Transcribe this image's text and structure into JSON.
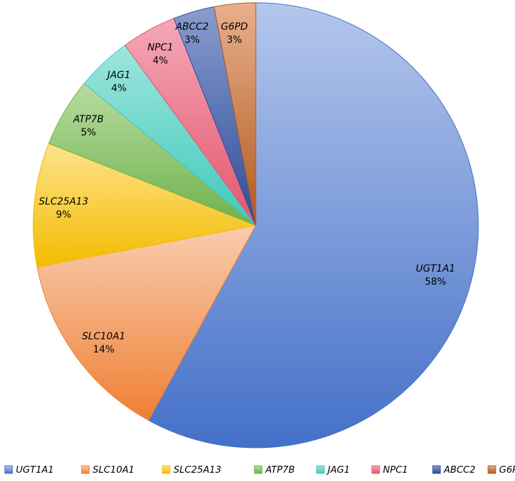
{
  "chart_data": {
    "type": "pie",
    "title": "",
    "categories": [
      "UGT1A1",
      "SLC10A1",
      "SLC25A13",
      "ATP7B",
      "JAG1",
      "NPC1",
      "ABCC2",
      "G6PD"
    ],
    "values": [
      58,
      14,
      9,
      5,
      4,
      4,
      3,
      3
    ],
    "labels": [
      "58%",
      "14%",
      "9%",
      "5%",
      "4%",
      "4%",
      "3%",
      "3%"
    ],
    "colors_light": [
      "#B4C7EC",
      "#F8CDAE",
      "#FDE38C",
      "#B7DB9F",
      "#9EE6DC",
      "#F4A8B6",
      "#8A9CCF",
      "#E8B08C"
    ],
    "colors_dark": [
      "#4470C8",
      "#EF7F34",
      "#F3BC00",
      "#6FB24C",
      "#3FC8BB",
      "#E4566E",
      "#2E4C98",
      "#B05A20"
    ],
    "legend_position": "bottom",
    "start_angle": "12 o'clock",
    "direction": "clockwise"
  }
}
